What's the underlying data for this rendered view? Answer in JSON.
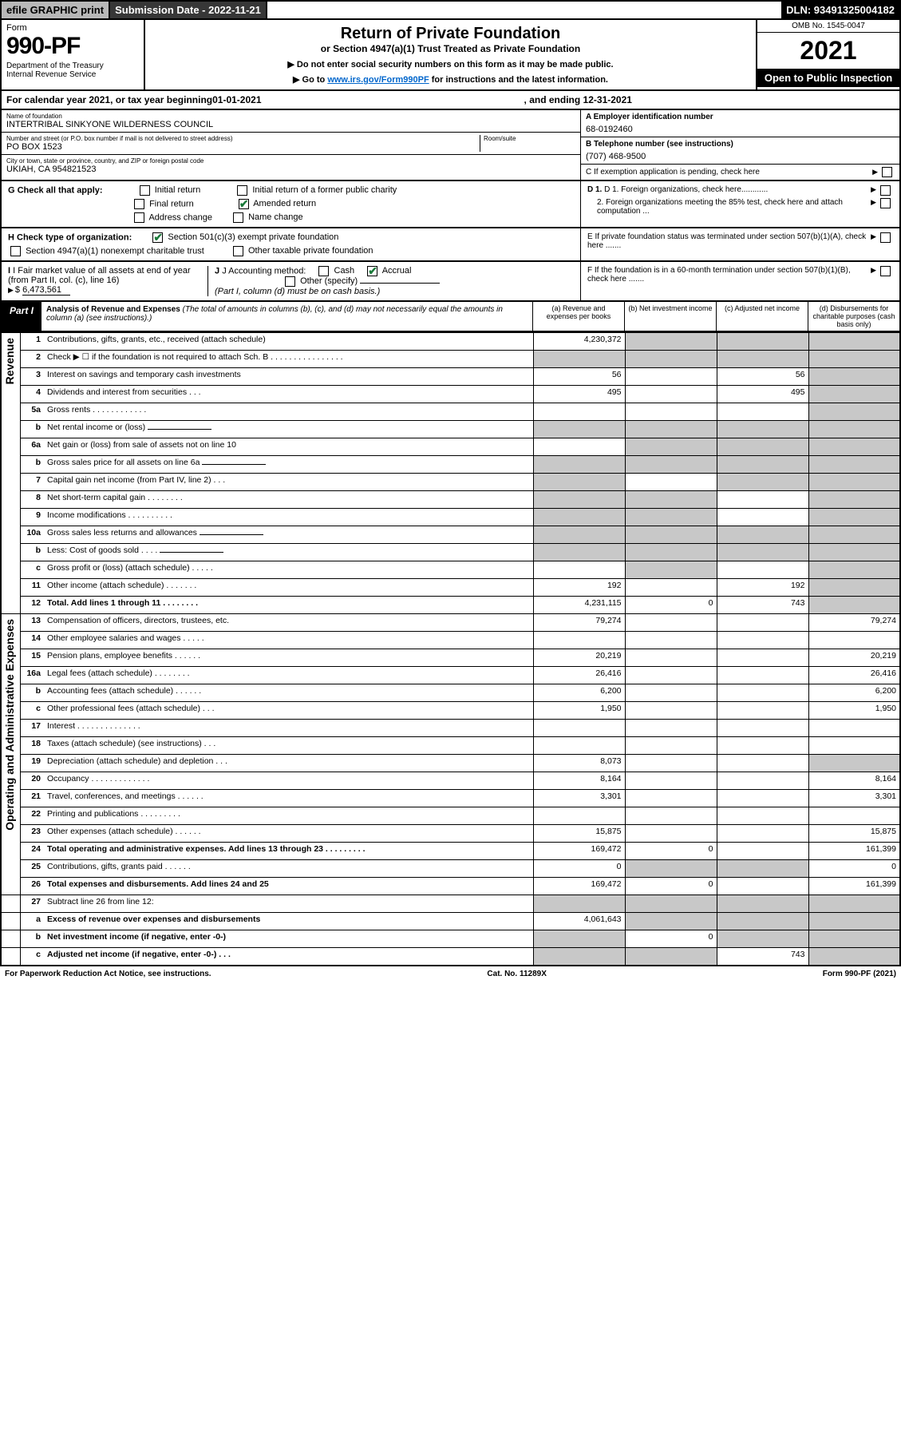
{
  "topbar": {
    "efile": "efile GRAPHIC print",
    "subdate_label": "Submission Date - 2022-11-21",
    "dln": "DLN: 93491325004182"
  },
  "header": {
    "form_label": "Form",
    "form_no": "990-PF",
    "dept": "Department of the Treasury\nInternal Revenue Service",
    "title": "Return of Private Foundation",
    "subtitle": "or Section 4947(a)(1) Trust Treated as Private Foundation",
    "note1": "▶ Do not enter social security numbers on this form as it may be made public.",
    "note2_pre": "▶ Go to ",
    "note2_link": "www.irs.gov/Form990PF",
    "note2_post": " for instructions and the latest information.",
    "omb": "OMB No. 1545-0047",
    "year": "2021",
    "open": "Open to Public Inspection"
  },
  "calendar": {
    "pre": "For calendar year 2021, or tax year beginning ",
    "begin": "01-01-2021",
    "mid": ", and ending ",
    "end": "12-31-2021"
  },
  "foundation": {
    "name_lbl": "Name of foundation",
    "name": "INTERTRIBAL SINKYONE WILDERNESS COUNCIL",
    "addr_lbl": "Number and street (or P.O. box number if mail is not delivered to street address)",
    "addr": "PO BOX 1523",
    "room_lbl": "Room/suite",
    "city_lbl": "City or town, state or province, country, and ZIP or foreign postal code",
    "city": "UKIAH, CA  954821523",
    "ein_lbl": "A Employer identification number",
    "ein": "68-0192460",
    "tel_lbl": "B Telephone number (see instructions)",
    "tel": "(707) 468-9500",
    "c_lbl": "C If exemption application is pending, check here"
  },
  "checks": {
    "g_lbl": "G Check all that apply:",
    "initial": "Initial return",
    "initial_former": "Initial return of a former public charity",
    "final": "Final return",
    "amended": "Amended return",
    "addr_change": "Address change",
    "name_change": "Name change",
    "h_lbl": "H Check type of organization:",
    "h_501c3": "Section 501(c)(3) exempt private foundation",
    "h_4947": "Section 4947(a)(1) nonexempt charitable trust",
    "h_other": "Other taxable private foundation",
    "i_lbl": "I Fair market value of all assets at end of year (from Part II, col. (c), line 16)",
    "i_val": "6,473,561",
    "j_lbl": "J Accounting method:",
    "j_cash": "Cash",
    "j_accrual": "Accrual",
    "j_other": "Other (specify)",
    "j_note": "(Part I, column (d) must be on cash basis.)",
    "d1": "D 1. Foreign organizations, check here............",
    "d2": "2. Foreign organizations meeting the 85% test, check here and attach computation ...",
    "e_lbl": "E  If private foundation status was terminated under section 507(b)(1)(A), check here .......",
    "f_lbl": "F  If the foundation is in a 60-month termination under section 507(b)(1)(B), check here .......",
    "arrow": "▶"
  },
  "part1": {
    "label": "Part I",
    "title": "Analysis of Revenue and Expenses",
    "title_note": " (The total of amounts in columns (b), (c), and (d) may not necessarily equal the amounts in column (a) (see instructions).)",
    "col_a": "(a) Revenue and expenses per books",
    "col_b": "(b) Net investment income",
    "col_c": "(c) Adjusted net income",
    "col_d": "(d) Disbursements for charitable purposes (cash basis only)"
  },
  "sections": {
    "revenue": "Revenue",
    "expenses": "Operating and Administrative Expenses"
  },
  "rows": [
    {
      "n": "1",
      "desc": "Contributions, gifts, grants, etc., received (attach schedule)",
      "a": "4,230,372",
      "b": "shade",
      "c": "shade",
      "d": "shade"
    },
    {
      "n": "2",
      "desc": "Check ▶ ☐ if the foundation is not required to attach Sch. B   .  .  .  .  .  .  .  .  .  .  .  .  .  .  .  .",
      "a": "shade",
      "b": "shade",
      "c": "shade",
      "d": "shade"
    },
    {
      "n": "3",
      "desc": "Interest on savings and temporary cash investments",
      "a": "56",
      "b": "",
      "c": "56",
      "d": "shade"
    },
    {
      "n": "4",
      "desc": "Dividends and interest from securities   .   .   .",
      "a": "495",
      "b": "",
      "c": "495",
      "d": "shade"
    },
    {
      "n": "5a",
      "desc": "Gross rents   .   .   .   .   .   .   .   .   .   .   .   .",
      "a": "",
      "b": "",
      "c": "",
      "d": "shade"
    },
    {
      "n": "b",
      "desc": "Net rental income or (loss)  ",
      "a": "shade",
      "b": "shade",
      "c": "shade",
      "d": "shade",
      "inline": true
    },
    {
      "n": "6a",
      "desc": "Net gain or (loss) from sale of assets not on line 10",
      "a": "",
      "b": "shade",
      "c": "shade",
      "d": "shade"
    },
    {
      "n": "b",
      "desc": "Gross sales price for all assets on line 6a",
      "a": "shade",
      "b": "shade",
      "c": "shade",
      "d": "shade",
      "inline": true
    },
    {
      "n": "7",
      "desc": "Capital gain net income (from Part IV, line 2)   .   .   .",
      "a": "shade",
      "b": "",
      "c": "shade",
      "d": "shade"
    },
    {
      "n": "8",
      "desc": "Net short-term capital gain  .   .   .   .   .   .   .   .",
      "a": "shade",
      "b": "shade",
      "c": "",
      "d": "shade"
    },
    {
      "n": "9",
      "desc": "Income modifications  .   .   .   .   .   .   .   .   .   .",
      "a": "shade",
      "b": "shade",
      "c": "",
      "d": "shade"
    },
    {
      "n": "10a",
      "desc": "Gross sales less returns and allowances",
      "a": "shade",
      "b": "shade",
      "c": "shade",
      "d": "shade",
      "inline": true
    },
    {
      "n": "b",
      "desc": "Less: Cost of goods sold   .   .   .   .",
      "a": "shade",
      "b": "shade",
      "c": "shade",
      "d": "shade",
      "inline": true
    },
    {
      "n": "c",
      "desc": "Gross profit or (loss) (attach schedule)   .   .   .   .   .",
      "a": "",
      "b": "shade",
      "c": "",
      "d": "shade"
    },
    {
      "n": "11",
      "desc": "Other income (attach schedule)   .   .   .   .   .   .   .",
      "a": "192",
      "b": "",
      "c": "192",
      "d": "shade"
    },
    {
      "n": "12",
      "desc": "Total. Add lines 1 through 11   .   .   .   .   .   .   .   .",
      "a": "4,231,115",
      "b": "0",
      "c": "743",
      "d": "shade",
      "bold": true
    }
  ],
  "exp_rows": [
    {
      "n": "13",
      "desc": "Compensation of officers, directors, trustees, etc.",
      "a": "79,274",
      "b": "",
      "c": "",
      "d": "79,274"
    },
    {
      "n": "14",
      "desc": "Other employee salaries and wages   .   .   .   .   .",
      "a": "",
      "b": "",
      "c": "",
      "d": ""
    },
    {
      "n": "15",
      "desc": "Pension plans, employee benefits  .   .   .   .   .   .",
      "a": "20,219",
      "b": "",
      "c": "",
      "d": "20,219"
    },
    {
      "n": "16a",
      "desc": "Legal fees (attach schedule)  .   .   .   .   .   .   .   .",
      "a": "26,416",
      "b": "",
      "c": "",
      "d": "26,416"
    },
    {
      "n": "b",
      "desc": "Accounting fees (attach schedule)  .   .   .   .   .   .",
      "a": "6,200",
      "b": "",
      "c": "",
      "d": "6,200"
    },
    {
      "n": "c",
      "desc": "Other professional fees (attach schedule)   .   .   .",
      "a": "1,950",
      "b": "",
      "c": "",
      "d": "1,950"
    },
    {
      "n": "17",
      "desc": "Interest  .   .   .   .   .   .   .   .   .   .   .   .   .   .",
      "a": "",
      "b": "",
      "c": "",
      "d": ""
    },
    {
      "n": "18",
      "desc": "Taxes (attach schedule) (see instructions)   .   .   .",
      "a": "",
      "b": "",
      "c": "",
      "d": ""
    },
    {
      "n": "19",
      "desc": "Depreciation (attach schedule) and depletion   .   .   .",
      "a": "8,073",
      "b": "",
      "c": "",
      "d": "shade"
    },
    {
      "n": "20",
      "desc": "Occupancy  .   .   .   .   .   .   .   .   .   .   .   .   .",
      "a": "8,164",
      "b": "",
      "c": "",
      "d": "8,164"
    },
    {
      "n": "21",
      "desc": "Travel, conferences, and meetings  .   .   .   .   .   .",
      "a": "3,301",
      "b": "",
      "c": "",
      "d": "3,301"
    },
    {
      "n": "22",
      "desc": "Printing and publications  .   .   .   .   .   .   .   .   .",
      "a": "",
      "b": "",
      "c": "",
      "d": ""
    },
    {
      "n": "23",
      "desc": "Other expenses (attach schedule)  .   .   .   .   .   .",
      "a": "15,875",
      "b": "",
      "c": "",
      "d": "15,875"
    },
    {
      "n": "24",
      "desc": "Total operating and administrative expenses. Add lines 13 through 23   .   .   .   .   .   .   .   .   .",
      "a": "169,472",
      "b": "0",
      "c": "",
      "d": "161,399",
      "bold": true
    },
    {
      "n": "25",
      "desc": "Contributions, gifts, grants paid   .   .   .   .   .   .",
      "a": "0",
      "b": "shade",
      "c": "shade",
      "d": "0"
    },
    {
      "n": "26",
      "desc": "Total expenses and disbursements. Add lines 24 and 25",
      "a": "169,472",
      "b": "0",
      "c": "",
      "d": "161,399",
      "bold": true
    }
  ],
  "bottom_rows": [
    {
      "n": "27",
      "desc": "Subtract line 26 from line 12:",
      "a": "shade",
      "b": "shade",
      "c": "shade",
      "d": "shade"
    },
    {
      "n": "a",
      "desc": "Excess of revenue over expenses and disbursements",
      "a": "4,061,643",
      "b": "shade",
      "c": "shade",
      "d": "shade",
      "bold": true
    },
    {
      "n": "b",
      "desc": "Net investment income (if negative, enter -0-)",
      "a": "shade",
      "b": "0",
      "c": "shade",
      "d": "shade",
      "bold": true
    },
    {
      "n": "c",
      "desc": "Adjusted net income (if negative, enter -0-)   .   .   .",
      "a": "shade",
      "b": "shade",
      "c": "743",
      "d": "shade",
      "bold": true
    }
  ],
  "footer": {
    "left": "For Paperwork Reduction Act Notice, see instructions.",
    "mid": "Cat. No. 11289X",
    "right": "Form 990-PF (2021)"
  },
  "colors": {
    "shade": "#c8c8c8",
    "link": "#0066cc",
    "check": "#1a7a3a"
  }
}
